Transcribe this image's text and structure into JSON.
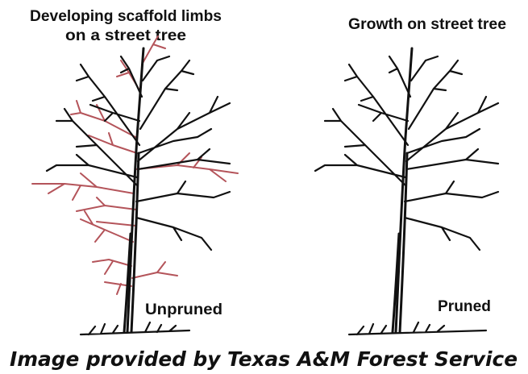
{
  "left": {
    "title_lines": [
      "Developing scaffold limbs",
      "on a street tree"
    ],
    "label": "Unpruned"
  },
  "right": {
    "title": "Growth on street tree",
    "label": "Pruned"
  },
  "caption": "Image provided by Texas A&M Forest Service"
}
